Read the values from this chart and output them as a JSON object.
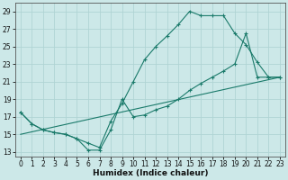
{
  "xlabel": "Humidex (Indice chaleur)",
  "background_color": "#cce8e8",
  "grid_color": "#b0d4d4",
  "line_color": "#1a7a6a",
  "xlim": [
    -0.5,
    23.5
  ],
  "ylim": [
    12.5,
    30
  ],
  "xticks": [
    0,
    1,
    2,
    3,
    4,
    5,
    6,
    7,
    8,
    9,
    10,
    11,
    12,
    13,
    14,
    15,
    16,
    17,
    18,
    19,
    20,
    21,
    22,
    23
  ],
  "yticks": [
    13,
    15,
    17,
    19,
    21,
    23,
    25,
    27,
    29
  ],
  "line1_x": [
    0,
    1,
    2,
    3,
    4,
    5,
    6,
    7,
    8,
    9,
    10,
    11,
    12,
    13,
    14,
    15,
    16,
    17,
    18,
    19,
    20,
    21,
    22,
    23
  ],
  "line1_y": [
    17.5,
    16.2,
    15.5,
    15.2,
    15.0,
    14.5,
    14.0,
    13.5,
    16.5,
    18.5,
    21.0,
    23.5,
    25.0,
    26.2,
    27.5,
    29.0,
    28.5,
    28.5,
    28.5,
    26.5,
    25.2,
    23.2,
    21.5,
    21.5
  ],
  "line2_x": [
    0,
    1,
    2,
    3,
    4,
    5,
    6,
    7,
    8,
    9,
    10,
    11,
    12,
    13,
    14,
    15,
    16,
    17,
    18,
    19,
    20,
    21,
    22,
    23
  ],
  "line2_y": [
    17.5,
    16.2,
    15.5,
    15.2,
    15.0,
    14.5,
    13.2,
    13.2,
    15.5,
    19.0,
    17.0,
    17.2,
    17.8,
    18.2,
    19.0,
    20.0,
    20.8,
    21.5,
    22.2,
    23.0,
    26.5,
    21.5,
    21.5,
    21.5
  ],
  "line3_x": [
    0,
    23
  ],
  "line3_y": [
    15.0,
    21.5
  ]
}
